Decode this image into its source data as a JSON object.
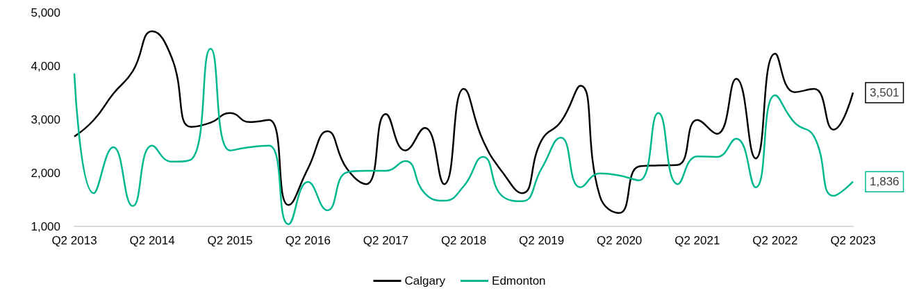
{
  "chart_data": {
    "type": "line",
    "categories": [
      "Q2 2013",
      null,
      null,
      null,
      "Q2 2014",
      null,
      null,
      null,
      "Q2 2015",
      null,
      null,
      null,
      "Q2 2016",
      null,
      null,
      null,
      "Q2 2017",
      null,
      null,
      null,
      "Q2 2018",
      null,
      null,
      null,
      "Q2 2019",
      null,
      null,
      null,
      "Q2 2020",
      null,
      null,
      null,
      "Q2 2021",
      null,
      null,
      null,
      "Q2 2022",
      null,
      null,
      null,
      "Q2 2023"
    ],
    "series": [
      {
        "name": "Calgary",
        "color": "#000000",
        "values": [
          2680,
          2990,
          3480,
          3900,
          4650,
          4160,
          2860,
          2940,
          3120,
          2950,
          2990,
          1400,
          2080,
          2780,
          2080,
          1790,
          3100,
          2420,
          2840,
          1790,
          3570,
          2600,
          2010,
          1620,
          2610,
          2960,
          3630,
          1560,
          1250,
          2120,
          2140,
          2150,
          2990,
          2730,
          3760,
          2270,
          4230,
          3510,
          3570,
          2810,
          3501
        ],
        "value_labels": [
          null,
          null,
          null,
          null,
          null,
          null,
          null,
          null,
          null,
          null,
          null,
          null,
          null,
          null,
          null,
          null,
          null,
          null,
          null,
          null,
          null,
          null,
          null,
          null,
          null,
          null,
          null,
          null,
          null,
          null,
          null,
          null,
          null,
          null,
          null,
          null,
          null,
          null,
          null,
          null,
          "3,501"
        ]
      },
      {
        "name": "Edmonton",
        "color": "#00b890",
        "values": [
          3860,
          1620,
          2480,
          1380,
          2510,
          2210,
          2250,
          4320,
          2420,
          2480,
          2510,
          1040,
          1830,
          1300,
          2010,
          2040,
          2040,
          2220,
          1620,
          1480,
          1750,
          2300,
          1560,
          1470,
          2080,
          2660,
          1730,
          1990,
          1950,
          1860,
          3120,
          1790,
          2310,
          2300,
          2640,
          1730,
          3450,
          2940,
          2680,
          1570,
          1836
        ],
        "value_labels": [
          null,
          null,
          null,
          null,
          null,
          null,
          null,
          null,
          null,
          null,
          null,
          null,
          null,
          null,
          null,
          null,
          null,
          null,
          null,
          null,
          null,
          null,
          null,
          null,
          null,
          null,
          null,
          null,
          null,
          null,
          null,
          null,
          null,
          null,
          null,
          null,
          null,
          null,
          null,
          null,
          "1,836"
        ]
      }
    ],
    "ylim": [
      1000,
      5000
    ],
    "yticks": [
      {
        "value": 1000,
        "label": "1,000"
      },
      {
        "value": 2000,
        "label": "2,000"
      },
      {
        "value": 3000,
        "label": "3,000"
      },
      {
        "value": 4000,
        "label": "4,000"
      },
      {
        "value": 5000,
        "label": "5,000"
      }
    ],
    "grid": false,
    "legend": "bottom",
    "marker": "none",
    "line_style": "solid"
  }
}
